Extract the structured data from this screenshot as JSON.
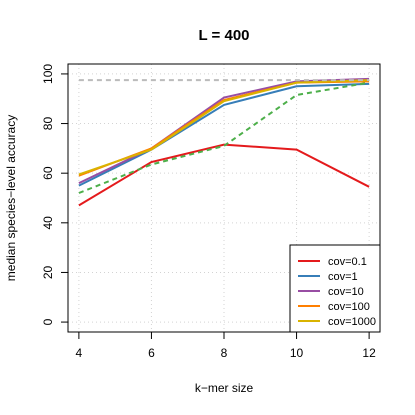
{
  "chart_data": {
    "type": "line",
    "title": "L = 400",
    "xlabel": "k−mer size",
    "ylabel": "median species−level accuracy",
    "x": [
      4,
      6,
      8,
      10,
      12
    ],
    "xticks": [
      "4",
      "6",
      "8",
      "10",
      "12"
    ],
    "yticks": [
      "0",
      "20",
      "40",
      "60",
      "80",
      "100"
    ],
    "xlim": [
      3.7,
      12.3
    ],
    "ylim": [
      -4,
      104
    ],
    "grid": true,
    "legend_position": "bottom-right",
    "series": [
      {
        "name": "cov=0.1",
        "color": "#e41a1c",
        "style": "solid",
        "values": [
          47,
          64.5,
          71.5,
          69.5,
          54.5
        ]
      },
      {
        "name": "cov=1",
        "color": "#377eb8",
        "style": "solid",
        "values": [
          55,
          69.5,
          87.5,
          95,
          96
        ]
      },
      {
        "name": "cov=10",
        "color": "#984ea3",
        "style": "solid",
        "values": [
          56,
          70,
          90.5,
          97,
          98
        ]
      },
      {
        "name": "cov=100",
        "color": "#ff7f00",
        "style": "solid",
        "values": [
          59,
          70,
          89.5,
          96.5,
          97
        ]
      },
      {
        "name": "cov=1000",
        "color": "#d9b300",
        "style": "solid",
        "values": [
          59.5,
          69.5,
          89,
          96.5,
          97.5
        ]
      },
      {
        "color": "#4daf4a",
        "style": "dashed",
        "values": [
          52,
          63.5,
          71,
          91.5,
          96.5
        ]
      },
      {
        "color": "#bbbbbb",
        "style": "dashed",
        "values": [
          97.5,
          97.5,
          97.5,
          97.5,
          97.5
        ]
      }
    ],
    "legend": [
      {
        "label": "cov=0.1",
        "color": "#e41a1c"
      },
      {
        "label": "cov=1",
        "color": "#377eb8"
      },
      {
        "label": "cov=10",
        "color": "#984ea3"
      },
      {
        "label": "cov=100",
        "color": "#ff7f00"
      },
      {
        "label": "cov=1000",
        "color": "#d9b300"
      }
    ]
  }
}
